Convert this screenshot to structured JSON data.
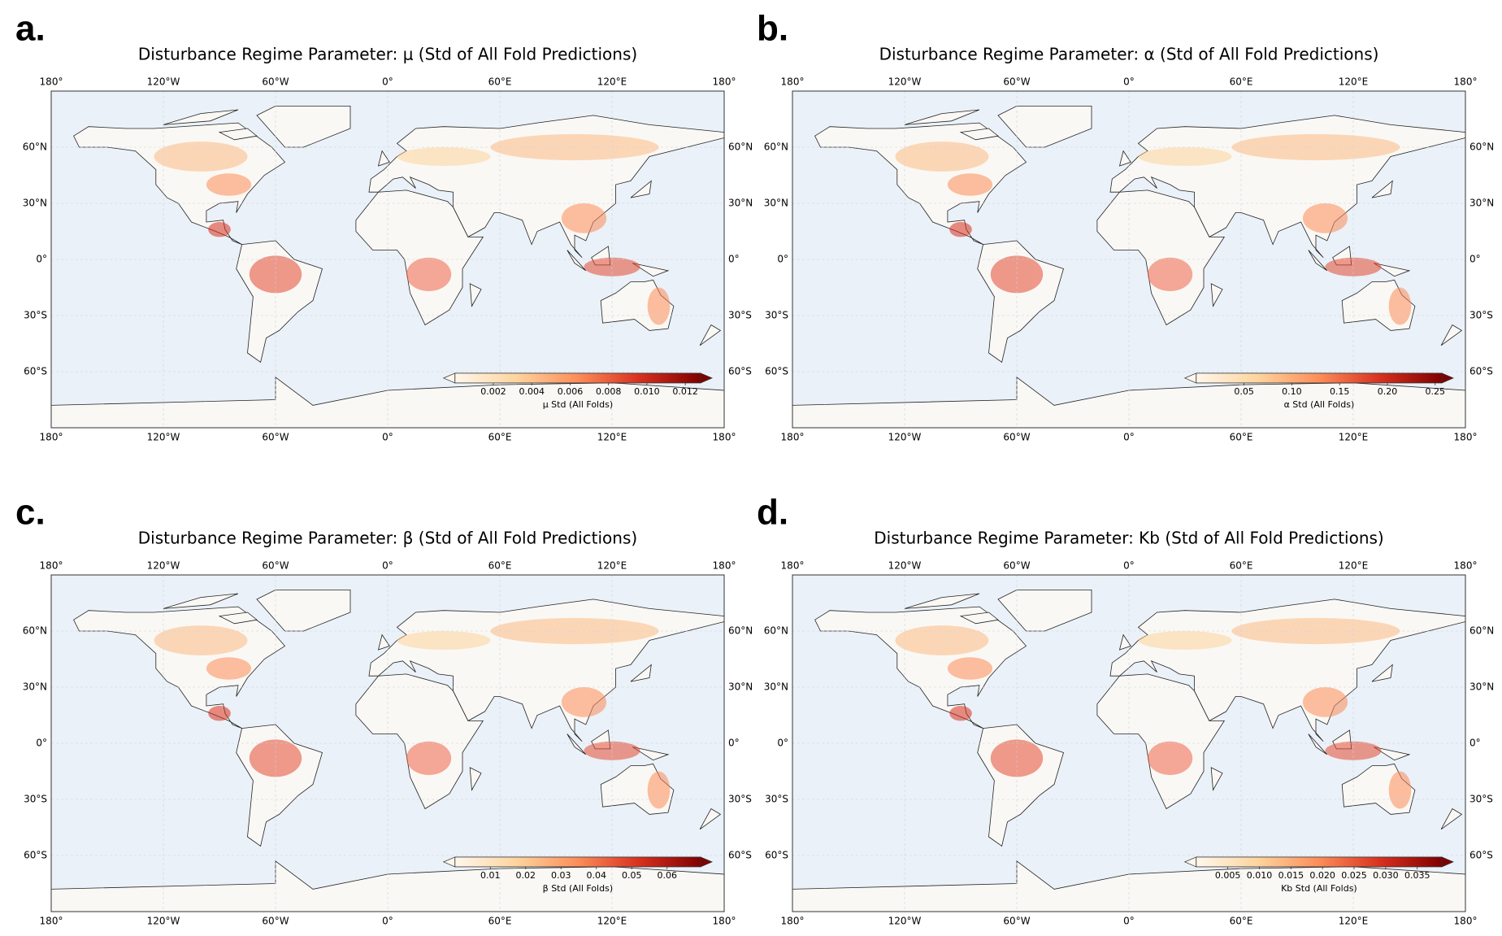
{
  "panels": [
    {
      "letter": "a.",
      "title": "Disturbance Regime Parameter: μ (Std of All Fold Predictions)",
      "colorbar": {
        "label": "μ Std (All Folds)",
        "clim": [
          0,
          0.0128
        ],
        "ticks": [
          0.002,
          0.004,
          0.006,
          0.008,
          {
            "value": 0.01,
            "label": "0.010"
          },
          0.012
        ]
      }
    },
    {
      "letter": "b.",
      "title": "Disturbance Regime Parameter: α (Std of All Fold Predictions)",
      "colorbar": {
        "label": "α Std (All Folds)",
        "clim": [
          0,
          0.257
        ],
        "ticks": [
          0.05,
          {
            "value": 0.1,
            "label": "0.10"
          },
          0.15,
          {
            "value": 0.2,
            "label": "0.20"
          },
          0.25
        ]
      }
    },
    {
      "letter": "c.",
      "title": "Disturbance Regime Parameter: β (Std of All Fold Predictions)",
      "colorbar": {
        "label": "β Std (All Folds)",
        "clim": [
          0,
          0.0695
        ],
        "ticks": [
          0.01,
          0.02,
          0.03,
          0.04,
          0.05,
          0.06
        ]
      }
    },
    {
      "letter": "d.",
      "title": "Disturbance Regime Parameter: Kb (Std of All Fold Predictions)",
      "colorbar": {
        "label": "Kb Std (All Folds)",
        "clim": [
          0,
          0.0389
        ],
        "ticks": [
          0.005,
          {
            "value": 0.01,
            "label": "0.010"
          },
          0.015,
          {
            "value": 0.02,
            "label": "0.020"
          },
          0.025,
          {
            "value": 0.03,
            "label": "0.030"
          },
          0.035
        ]
      }
    }
  ],
  "lon_ticks": [
    {
      "value": -180,
      "label": "180°"
    },
    {
      "value": -120,
      "label": "120°W"
    },
    {
      "value": -60,
      "label": "60°W"
    },
    {
      "value": 0,
      "label": "0°"
    },
    {
      "value": 60,
      "label": "60°E"
    },
    {
      "value": 120,
      "label": "120°E"
    },
    {
      "value": 180,
      "label": "180°"
    }
  ],
  "lat_ticks": [
    {
      "value": 60,
      "label": "60°N"
    },
    {
      "value": 30,
      "label": "30°N"
    },
    {
      "value": 0,
      "label": "0°"
    },
    {
      "value": -30,
      "label": "30°S"
    },
    {
      "value": -60,
      "label": "60°S"
    }
  ]
}
